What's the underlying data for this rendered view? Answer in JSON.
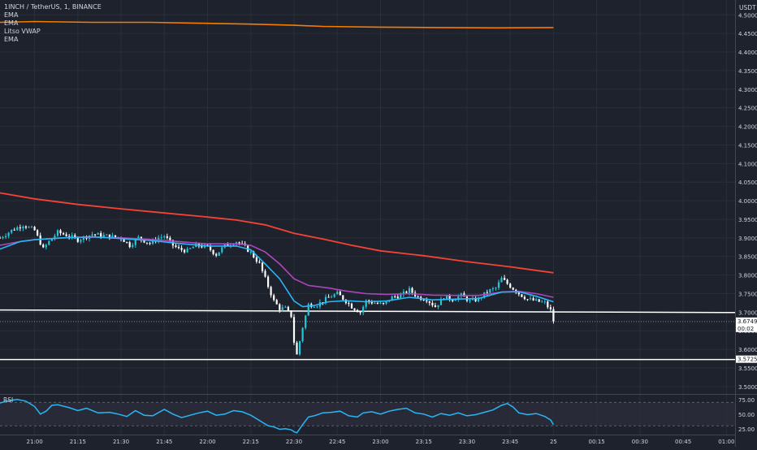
{
  "header": {
    "symbol_line": "1INCH / TetherUS, 1, BINANCE",
    "indicators": [
      "EMA",
      "EMA",
      "Litso VWAP",
      "EMA"
    ]
  },
  "colors": {
    "background": "#1e222d",
    "grid": "#2a2e39",
    "axis_text": "#d1d4dc",
    "up": "#26c6da",
    "down": "#ffffff",
    "ema_fast": "#29b6f6",
    "ema_mid": "#ab47bc",
    "ema_slow": "#f44336",
    "vwap": "#f57c00",
    "rsi": "#29b6f6"
  },
  "chart_data": [
    {
      "type": "candlestick",
      "name": "price",
      "y_axis_unit": "USDT",
      "ylim": [
        3.48,
        4.54
      ],
      "y_ticks": [
        "4.5000",
        "4.4500",
        "4.4000",
        "4.3500",
        "4.3000",
        "4.2500",
        "4.2000",
        "4.1500",
        "4.1000",
        "4.0500",
        "4.0000",
        "3.9500",
        "3.9000",
        "3.8500",
        "3.8000",
        "3.7500",
        "3.7000",
        "3.6500",
        "3.6000",
        "3.5500",
        "3.5000"
      ],
      "x_ticks": [
        "21:00",
        "21:15",
        "21:30",
        "21:45",
        "22:00",
        "22:15",
        "22:30",
        "22:45",
        "23:00",
        "23:15",
        "23:30",
        "23:45",
        "25",
        "00:15",
        "00:30",
        "00:45",
        "01:00"
      ],
      "x_tick_minutes": [
        0,
        15,
        30,
        45,
        60,
        75,
        90,
        105,
        120,
        135,
        150,
        165,
        180,
        195,
        210,
        225,
        240
      ],
      "x_minutes_range": [
        -12,
        243
      ],
      "candle_key_closes": [
        [
          -12,
          3.9
        ],
        [
          -8,
          3.92
        ],
        [
          -4,
          3.935
        ],
        [
          0,
          3.92
        ],
        [
          3,
          3.87
        ],
        [
          5,
          3.89
        ],
        [
          8,
          3.915
        ],
        [
          12,
          3.905
        ],
        [
          15,
          3.895
        ],
        [
          20,
          3.91
        ],
        [
          25,
          3.905
        ],
        [
          30,
          3.9
        ],
        [
          33,
          3.88
        ],
        [
          36,
          3.9
        ],
        [
          40,
          3.885
        ],
        [
          43,
          3.9
        ],
        [
          45,
          3.905
        ],
        [
          48,
          3.88
        ],
        [
          50,
          3.87
        ],
        [
          53,
          3.865
        ],
        [
          56,
          3.88
        ],
        [
          60,
          3.875
        ],
        [
          63,
          3.855
        ],
        [
          66,
          3.88
        ],
        [
          70,
          3.89
        ],
        [
          73,
          3.875
        ],
        [
          75,
          3.86
        ],
        [
          78,
          3.83
        ],
        [
          80,
          3.79
        ],
        [
          83,
          3.73
        ],
        [
          85,
          3.71
        ],
        [
          87,
          3.71
        ],
        [
          89,
          3.69
        ],
        [
          90,
          3.62
        ],
        [
          91,
          3.585
        ],
        [
          93,
          3.66
        ],
        [
          95,
          3.72
        ],
        [
          98,
          3.72
        ],
        [
          102,
          3.74
        ],
        [
          105,
          3.75
        ],
        [
          108,
          3.73
        ],
        [
          110,
          3.715
        ],
        [
          113,
          3.7
        ],
        [
          115,
          3.73
        ],
        [
          118,
          3.725
        ],
        [
          121,
          3.72
        ],
        [
          124,
          3.74
        ],
        [
          127,
          3.745
        ],
        [
          130,
          3.76
        ],
        [
          133,
          3.74
        ],
        [
          136,
          3.735
        ],
        [
          139,
          3.715
        ],
        [
          142,
          3.74
        ],
        [
          145,
          3.735
        ],
        [
          148,
          3.745
        ],
        [
          151,
          3.73
        ],
        [
          154,
          3.735
        ],
        [
          157,
          3.755
        ],
        [
          160,
          3.765
        ],
        [
          162,
          3.79
        ],
        [
          165,
          3.77
        ],
        [
          168,
          3.75
        ],
        [
          171,
          3.735
        ],
        [
          174,
          3.73
        ],
        [
          177,
          3.725
        ],
        [
          179,
          3.705
        ],
        [
          180,
          3.675
        ]
      ],
      "ema_fast_points": [
        [
          -12,
          3.87
        ],
        [
          -5,
          3.89
        ],
        [
          0,
          3.895
        ],
        [
          10,
          3.9
        ],
        [
          20,
          3.903
        ],
        [
          30,
          3.898
        ],
        [
          40,
          3.893
        ],
        [
          50,
          3.885
        ],
        [
          60,
          3.878
        ],
        [
          70,
          3.878
        ],
        [
          75,
          3.868
        ],
        [
          80,
          3.83
        ],
        [
          85,
          3.79
        ],
        [
          90,
          3.73
        ],
        [
          93,
          3.715
        ],
        [
          97,
          3.718
        ],
        [
          102,
          3.728
        ],
        [
          108,
          3.731
        ],
        [
          115,
          3.728
        ],
        [
          122,
          3.73
        ],
        [
          130,
          3.74
        ],
        [
          138,
          3.733
        ],
        [
          146,
          3.735
        ],
        [
          154,
          3.737
        ],
        [
          162,
          3.754
        ],
        [
          168,
          3.755
        ],
        [
          174,
          3.743
        ],
        [
          180,
          3.728
        ]
      ],
      "ema_mid_points": [
        [
          -12,
          3.88
        ],
        [
          -5,
          3.89
        ],
        [
          0,
          3.895
        ],
        [
          10,
          3.9
        ],
        [
          20,
          3.902
        ],
        [
          30,
          3.9
        ],
        [
          40,
          3.896
        ],
        [
          50,
          3.89
        ],
        [
          60,
          3.884
        ],
        [
          70,
          3.884
        ],
        [
          75,
          3.88
        ],
        [
          80,
          3.862
        ],
        [
          85,
          3.83
        ],
        [
          90,
          3.79
        ],
        [
          95,
          3.772
        ],
        [
          102,
          3.765
        ],
        [
          108,
          3.757
        ],
        [
          115,
          3.75
        ],
        [
          122,
          3.748
        ],
        [
          130,
          3.75
        ],
        [
          138,
          3.746
        ],
        [
          146,
          3.745
        ],
        [
          154,
          3.745
        ],
        [
          162,
          3.754
        ],
        [
          168,
          3.756
        ],
        [
          174,
          3.75
        ],
        [
          180,
          3.74
        ]
      ],
      "ema_slow_points": [
        [
          -12,
          4.021
        ],
        [
          0,
          4.005
        ],
        [
          15,
          3.99
        ],
        [
          30,
          3.978
        ],
        [
          45,
          3.967
        ],
        [
          60,
          3.956
        ],
        [
          70,
          3.948
        ],
        [
          80,
          3.935
        ],
        [
          90,
          3.912
        ],
        [
          100,
          3.897
        ],
        [
          110,
          3.88
        ],
        [
          120,
          3.865
        ],
        [
          135,
          3.852
        ],
        [
          150,
          3.836
        ],
        [
          165,
          3.822
        ],
        [
          180,
          3.806
        ]
      ],
      "vwap_points": [
        [
          -12,
          4.48
        ],
        [
          0,
          4.482
        ],
        [
          20,
          4.48
        ],
        [
          40,
          4.48
        ],
        [
          55,
          4.478
        ],
        [
          75,
          4.475
        ],
        [
          90,
          4.472
        ],
        [
          100,
          4.469
        ],
        [
          120,
          4.467
        ],
        [
          140,
          4.466
        ],
        [
          160,
          4.465
        ],
        [
          180,
          4.466
        ]
      ],
      "horizontal_levels": [
        {
          "x_start_min": -12,
          "y_start": 3.706,
          "x_end_min": 243,
          "y_end": 3.699
        },
        {
          "x_start_min": -12,
          "y_start": 3.5725,
          "x_end_min": 243,
          "y_end": 3.5725
        }
      ],
      "dotted_price_line": 3.6749,
      "price_labels": [
        {
          "value": "3.6749",
          "sub": "00:02",
          "price": 3.6749,
          "bg": "#ffffff",
          "fg": "#131722"
        },
        {
          "value": "3.5725",
          "price": 3.5725,
          "bg": "#ffffff",
          "fg": "#131722"
        }
      ]
    },
    {
      "type": "line",
      "name": "RSI",
      "label": "RSI",
      "ylim": [
        15,
        83
      ],
      "band": [
        30,
        70
      ],
      "y_ticks": [
        "75.00",
        "50.00",
        "25.00"
      ],
      "y_tick_values": [
        75,
        50,
        25
      ],
      "points": [
        [
          -12,
          69
        ],
        [
          -9,
          73
        ],
        [
          -6,
          75
        ],
        [
          -3,
          72
        ],
        [
          0,
          63
        ],
        [
          2,
          50
        ],
        [
          4,
          55
        ],
        [
          6,
          65
        ],
        [
          8,
          66
        ],
        [
          12,
          61
        ],
        [
          15,
          56
        ],
        [
          18,
          60
        ],
        [
          22,
          52
        ],
        [
          26,
          53
        ],
        [
          29,
          50
        ],
        [
          32,
          46
        ],
        [
          35,
          56
        ],
        [
          38,
          48
        ],
        [
          41,
          47
        ],
        [
          45,
          58
        ],
        [
          48,
          50
        ],
        [
          51,
          44
        ],
        [
          54,
          48
        ],
        [
          57,
          52
        ],
        [
          60,
          55
        ],
        [
          63,
          48
        ],
        [
          66,
          50
        ],
        [
          69,
          56
        ],
        [
          72,
          54
        ],
        [
          75,
          48
        ],
        [
          77,
          42
        ],
        [
          79,
          36
        ],
        [
          81,
          30
        ],
        [
          83,
          28
        ],
        [
          85,
          24
        ],
        [
          87,
          25
        ],
        [
          89,
          23
        ],
        [
          90,
          20
        ],
        [
          91,
          18
        ],
        [
          93,
          32
        ],
        [
          95,
          45
        ],
        [
          97,
          47
        ],
        [
          100,
          52
        ],
        [
          103,
          53
        ],
        [
          106,
          55
        ],
        [
          109,
          47
        ],
        [
          112,
          45
        ],
        [
          114,
          52
        ],
        [
          117,
          54
        ],
        [
          120,
          50
        ],
        [
          123,
          55
        ],
        [
          126,
          58
        ],
        [
          129,
          60
        ],
        [
          132,
          52
        ],
        [
          135,
          50
        ],
        [
          138,
          45
        ],
        [
          141,
          51
        ],
        [
          144,
          48
        ],
        [
          147,
          52
        ],
        [
          150,
          47
        ],
        [
          153,
          49
        ],
        [
          156,
          53
        ],
        [
          159,
          57
        ],
        [
          162,
          65
        ],
        [
          164,
          68
        ],
        [
          166,
          62
        ],
        [
          168,
          52
        ],
        [
          171,
          49
        ],
        [
          174,
          51
        ],
        [
          177,
          46
        ],
        [
          179,
          40
        ],
        [
          180,
          32
        ]
      ]
    }
  ]
}
